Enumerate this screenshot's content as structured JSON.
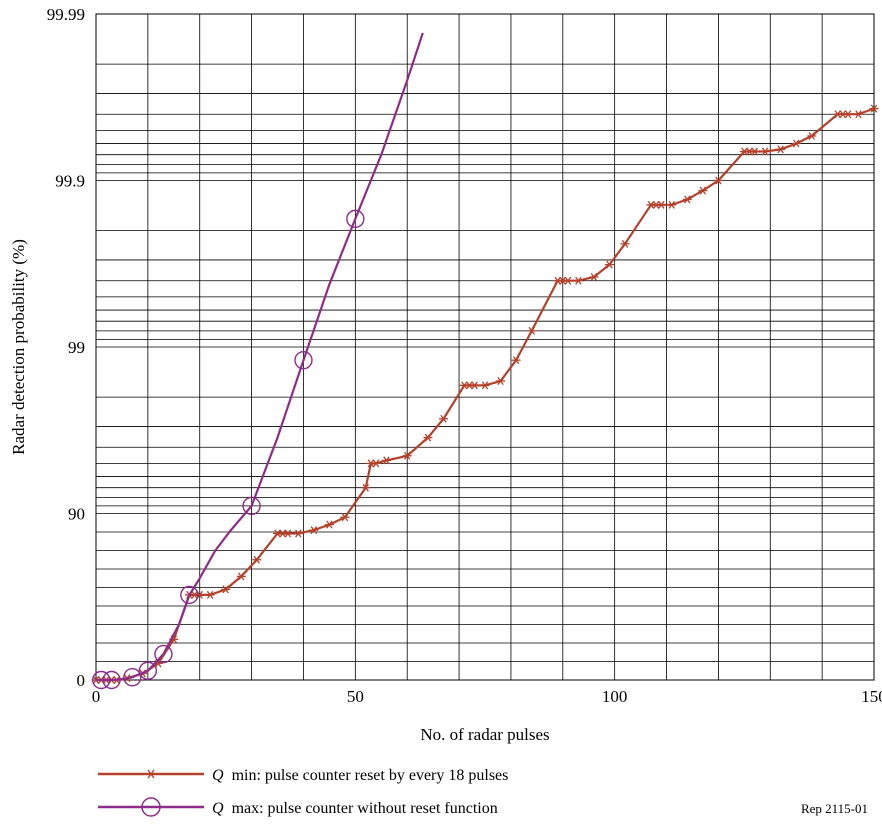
{
  "chart_data": {
    "type": "line",
    "xlabel": "No. of radar pulses",
    "ylabel": "Radar detection probability (%)",
    "xlim": [
      0,
      150
    ],
    "xticks": [
      0,
      50,
      100,
      150
    ],
    "y_scale": "probability (normal)",
    "yticks": [
      {
        "value": 0,
        "label": "0"
      },
      {
        "value": 90,
        "label": "90"
      },
      {
        "value": 99,
        "label": "99"
      },
      {
        "value": 99.9,
        "label": "99.9"
      },
      {
        "value": 99.99,
        "label": "99.99"
      }
    ],
    "grid": true,
    "series": [
      {
        "name": "min: pulse counter reset by every 18 pulses",
        "name_prefix": "Q",
        "color": "#B5412A",
        "marker": "asterisk",
        "points": [
          [
            0,
            0.0
          ],
          [
            1,
            0.0
          ],
          [
            2,
            0.0
          ],
          [
            3,
            0.0
          ],
          [
            4,
            0.0
          ],
          [
            6,
            1.0
          ],
          [
            9,
            3.5
          ],
          [
            12,
            9.0
          ],
          [
            15,
            22.0
          ],
          [
            18,
            46.0
          ],
          [
            19,
            46.0
          ],
          [
            20,
            46.0
          ],
          [
            22,
            46.0
          ],
          [
            25,
            49.0
          ],
          [
            28,
            56.0
          ],
          [
            31,
            65.0
          ],
          [
            35,
            79.2
          ],
          [
            36,
            79.2
          ],
          [
            37,
            79.2
          ],
          [
            39,
            79.2
          ],
          [
            42,
            81.0
          ],
          [
            45,
            84.0
          ],
          [
            48,
            88.0
          ],
          [
            52,
            93.0
          ],
          [
            53,
            95.0
          ],
          [
            54,
            95.0
          ],
          [
            56,
            95.2
          ],
          [
            60,
            95.5
          ],
          [
            64,
            96.5
          ],
          [
            67,
            97.3
          ],
          [
            71,
            98.3
          ],
          [
            72,
            98.3
          ],
          [
            73,
            98.3
          ],
          [
            75,
            98.3
          ],
          [
            78,
            98.4
          ],
          [
            81,
            98.8
          ],
          [
            84,
            99.2
          ],
          [
            89,
            99.6
          ],
          [
            90,
            99.6
          ],
          [
            91,
            99.6
          ],
          [
            93,
            99.6
          ],
          [
            96,
            99.62
          ],
          [
            99,
            99.68
          ],
          [
            102,
            99.76
          ],
          [
            107,
            99.86
          ],
          [
            108,
            99.86
          ],
          [
            109,
            99.86
          ],
          [
            111,
            99.86
          ],
          [
            114,
            99.87
          ],
          [
            117,
            99.885
          ],
          [
            120,
            99.9
          ],
          [
            125,
            99.933
          ],
          [
            126,
            99.933
          ],
          [
            127,
            99.933
          ],
          [
            129,
            99.933
          ],
          [
            132,
            99.935
          ],
          [
            135,
            99.94
          ],
          [
            138,
            99.946
          ],
          [
            143,
            99.96
          ],
          [
            144,
            99.96
          ],
          [
            145,
            99.96
          ],
          [
            147,
            99.96
          ],
          [
            150,
            99.963
          ]
        ]
      },
      {
        "name": "max: pulse counter without reset function",
        "name_prefix": "Q",
        "color": "#8E2C8A",
        "marker": "circle",
        "points": [
          [
            0,
            0.0
          ],
          [
            1,
            0.0
          ],
          [
            3,
            0.0
          ],
          [
            5,
            0.3
          ],
          [
            7,
            1.5
          ],
          [
            10,
            5.0
          ],
          [
            13,
            14.0
          ],
          [
            16,
            30.0
          ],
          [
            18,
            46.0
          ],
          [
            20,
            55.0
          ],
          [
            23,
            70.0
          ],
          [
            26,
            81.0
          ],
          [
            30,
            91.0
          ],
          [
            35,
            96.5
          ],
          [
            40,
            98.8
          ],
          [
            45,
            99.58
          ],
          [
            50,
            99.83
          ],
          [
            55,
            99.93
          ],
          [
            60,
            99.975
          ],
          [
            63,
            99.987
          ]
        ],
        "marker_points": [
          [
            1,
            0.0
          ],
          [
            3,
            0.0
          ],
          [
            7,
            1.5
          ],
          [
            10,
            5.0
          ],
          [
            13,
            14.0
          ],
          [
            18,
            46.0
          ],
          [
            30,
            91.0
          ],
          [
            40,
            98.8
          ],
          [
            50,
            99.83
          ]
        ]
      }
    ],
    "reference": "Rep 2115-01"
  }
}
